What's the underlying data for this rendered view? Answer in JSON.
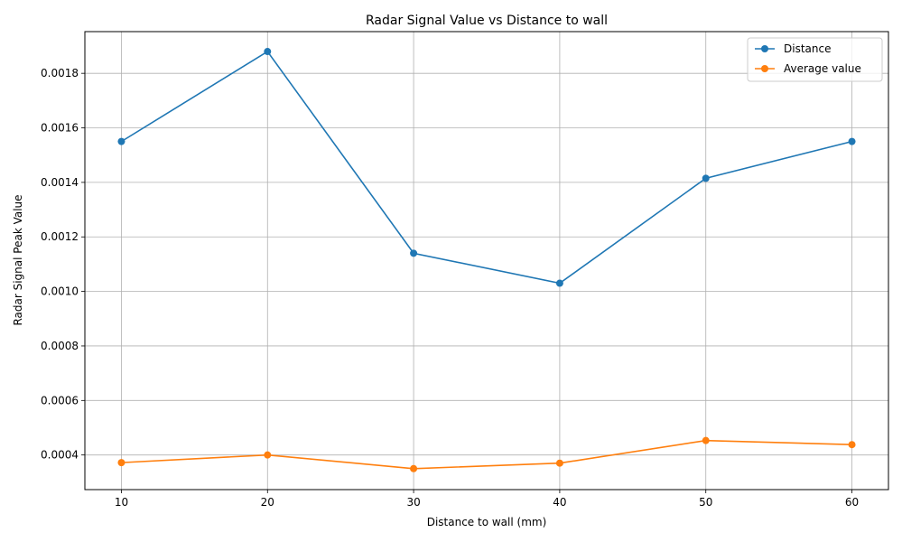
{
  "chart_data": {
    "type": "line",
    "title": "Radar Signal Value vs Distance to wall",
    "xlabel": "Distance to wall (mm)",
    "ylabel": "Radar Signal Peak Value",
    "x": [
      10,
      20,
      30,
      40,
      50,
      60
    ],
    "x_ticks": [
      "10",
      "20",
      "30",
      "40",
      "50",
      "60"
    ],
    "y_ticks": [
      "0.0004",
      "0.0006",
      "0.0008",
      "0.0010",
      "0.0012",
      "0.0014",
      "0.0016",
      "0.0018"
    ],
    "xlim": [
      7.5,
      62.5
    ],
    "ylim": [
      0.000273,
      0.001953
    ],
    "grid": true,
    "legend_position": "top-right",
    "series": [
      {
        "name": "Distance",
        "color": "#1f77b4",
        "values": [
          0.00155,
          0.00188,
          0.00114,
          0.00103,
          0.001415,
          0.00155
        ]
      },
      {
        "name": "Average value",
        "color": "#ff7f0e",
        "values": [
          0.000372,
          0.0004,
          0.00035,
          0.00037,
          0.000453,
          0.000438
        ]
      }
    ]
  }
}
